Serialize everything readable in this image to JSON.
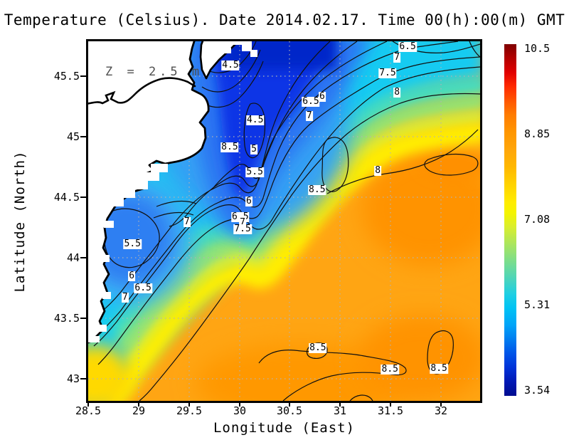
{
  "title": "Temperature (Celsius). Date 2014.02.17. Time 00(h):00(m) GMT",
  "annotation": "Z = 2.5 m",
  "axes": {
    "x": {
      "label": "Longitude (East)",
      "ticks": [
        "28.5",
        "29",
        "29.5",
        "30",
        "30.5",
        "31",
        "31.5",
        "32"
      ]
    },
    "y": {
      "label": "Latitude (North)",
      "ticks": [
        "45.5",
        "45",
        "44.5",
        "44",
        "43.5",
        "43"
      ]
    }
  },
  "colorbar": {
    "ticks": [
      "10.5",
      "8.85",
      "7.08",
      "5.31",
      "3.54"
    ],
    "min": 3.54,
    "max": 10.5,
    "colormap": "jet-like (dark blue → cyan → green → yellow → orange → dark red)"
  },
  "chart_data": {
    "type": "heatmap",
    "subtype": "filled-contour-map",
    "title": "Temperature (Celsius). Date 2014.02.17. Time 00(h):00(m) GMT",
    "xlabel": "Longitude (East)",
    "ylabel": "Latitude (North)",
    "annotation": "Z = 2.5 m",
    "x_ticks": [
      28.5,
      29,
      29.5,
      30,
      30.5,
      31,
      31.5,
      32
    ],
    "y_ticks": [
      45.5,
      45,
      44.5,
      44,
      43.5,
      43
    ],
    "x_range": [
      28.5,
      32.4
    ],
    "y_range": [
      42.8,
      45.8
    ],
    "grid": true,
    "colorbar_ticks": [
      10.5,
      8.85,
      7.08,
      5.31,
      3.54
    ],
    "colorbar_range": [
      3.54,
      10.5
    ],
    "contour_levels": [
      4.5,
      5,
      5.5,
      6,
      6.5,
      7,
      7.5,
      8,
      8.5
    ],
    "field_summary": "Cold water (4-5.5 C, dark blue) along NW coast and Danube delta region; warm water (8.5-9 C, orange) over SE/central area with closed 8.5 C pockets; cyan (6-6.5 C) patch in far NE corner; white land mass with black coastline on western side.",
    "contour_labels": [
      {
        "text": "4.5",
        "x_pct": 36.3,
        "y_pct": 6.7
      },
      {
        "text": "6.5",
        "x_pct": 81.5,
        "y_pct": 1.6
      },
      {
        "text": "7",
        "x_pct": 78.8,
        "y_pct": 4.6
      },
      {
        "text": "7.5",
        "x_pct": 76.4,
        "y_pct": 8.9
      },
      {
        "text": "8",
        "x_pct": 78.8,
        "y_pct": 14.3
      },
      {
        "text": "6",
        "x_pct": 59.7,
        "y_pct": 15.4
      },
      {
        "text": "6.5",
        "x_pct": 56.8,
        "y_pct": 16.8
      },
      {
        "text": "7",
        "x_pct": 56.4,
        "y_pct": 20.8
      },
      {
        "text": "4.5",
        "x_pct": 42.6,
        "y_pct": 22.0
      },
      {
        "text": "8.5",
        "x_pct": 36.1,
        "y_pct": 29.5
      },
      {
        "text": "5",
        "x_pct": 42.3,
        "y_pct": 30.1
      },
      {
        "text": "5.5",
        "x_pct": 42.5,
        "y_pct": 36.4
      },
      {
        "text": "8",
        "x_pct": 73.9,
        "y_pct": 36.0
      },
      {
        "text": "8.5",
        "x_pct": 58.4,
        "y_pct": 41.4
      },
      {
        "text": "6",
        "x_pct": 41.0,
        "y_pct": 44.6
      },
      {
        "text": "6.5",
        "x_pct": 38.8,
        "y_pct": 48.9
      },
      {
        "text": "7",
        "x_pct": 39.4,
        "y_pct": 50.5
      },
      {
        "text": "7.5",
        "x_pct": 39.4,
        "y_pct": 52.3
      },
      {
        "text": "7",
        "x_pct": 25.2,
        "y_pct": 50.3
      },
      {
        "text": "5.5",
        "x_pct": 11.3,
        "y_pct": 56.4
      },
      {
        "text": "6",
        "x_pct": 11.1,
        "y_pct": 65.3
      },
      {
        "text": "6.5",
        "x_pct": 14.0,
        "y_pct": 68.7
      },
      {
        "text": "7",
        "x_pct": 9.4,
        "y_pct": 71.3
      },
      {
        "text": "8.5",
        "x_pct": 58.6,
        "y_pct": 85.3
      },
      {
        "text": "8.5",
        "x_pct": 77.0,
        "y_pct": 91.3
      },
      {
        "text": "8.5",
        "x_pct": 89.5,
        "y_pct": 91.1
      }
    ]
  }
}
